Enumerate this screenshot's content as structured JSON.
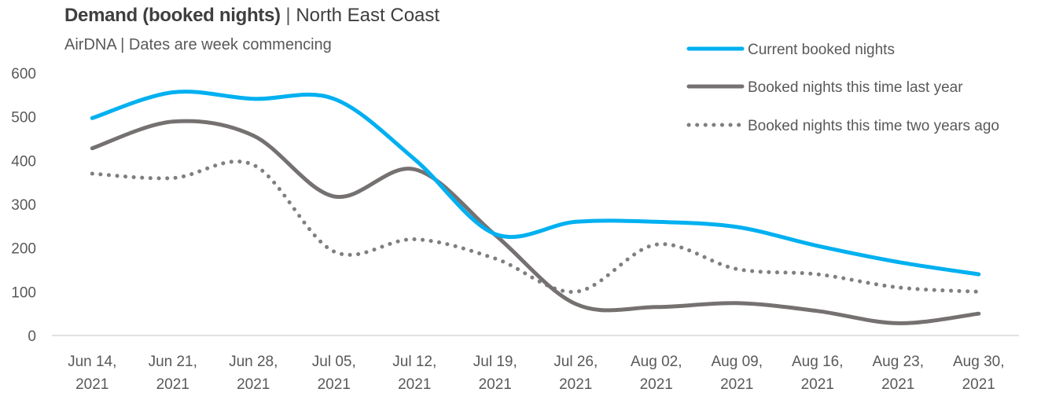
{
  "title": {
    "main": "Demand (booked nights)",
    "separator": "|",
    "region": "North East Coast"
  },
  "subtitle": "AirDNA | Dates are week commencing",
  "chart_data": {
    "type": "line",
    "categories": [
      [
        "Jun 14,",
        "2021"
      ],
      [
        "Jun 21,",
        "2021"
      ],
      [
        "Jun 28,",
        "2021"
      ],
      [
        "Jul 05,",
        "2021"
      ],
      [
        "Jul 12,",
        "2021"
      ],
      [
        "Jul 19,",
        "2021"
      ],
      [
        "Jul 26,",
        "2021"
      ],
      [
        "Aug 02,",
        "2021"
      ],
      [
        "Aug 09,",
        "2021"
      ],
      [
        "Aug 16,",
        "2021"
      ],
      [
        "Aug 23,",
        "2021"
      ],
      [
        "Aug 30,",
        "2021"
      ]
    ],
    "ylim": [
      0,
      600
    ],
    "yticks": [
      0,
      100,
      200,
      300,
      400,
      500,
      600
    ],
    "grid": false,
    "legend_position": "top-right",
    "series": [
      {
        "name": "Current booked nights",
        "color": "#00b0f0",
        "style": "solid",
        "values": [
          497,
          556,
          541,
          541,
          403,
          232,
          260,
          260,
          248,
          205,
          168,
          140
        ]
      },
      {
        "name": "Booked nights this time last year",
        "color": "#767171",
        "style": "solid",
        "values": [
          428,
          489,
          457,
          318,
          380,
          230,
          72,
          65,
          74,
          56,
          28,
          50
        ]
      },
      {
        "name": "Booked nights this time two years ago",
        "color": "#7f7f7f",
        "style": "dotted",
        "values": [
          370,
          360,
          390,
          192,
          220,
          176,
          100,
          208,
          152,
          140,
          110,
          100
        ]
      }
    ]
  }
}
